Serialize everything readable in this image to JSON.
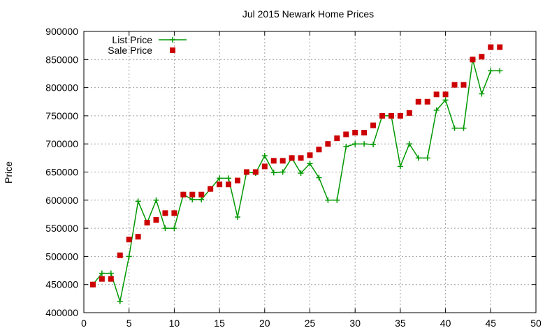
{
  "chart_data": {
    "type": "line",
    "title": "Jul 2015 Newark Home Prices",
    "xlabel": "",
    "ylabel": "Price",
    "xlim": [
      0,
      50
    ],
    "ylim": [
      400000,
      900000
    ],
    "xticks": [
      0,
      5,
      10,
      15,
      20,
      25,
      30,
      35,
      40,
      45,
      50
    ],
    "yticks": [
      400000,
      450000,
      500000,
      550000,
      600000,
      650000,
      700000,
      750000,
      800000,
      850000,
      900000
    ],
    "grid": true,
    "legend_position": "top-left",
    "series": [
      {
        "name": "List Price",
        "style": "line-with-plus-markers",
        "color": "#009900",
        "x": [
          1,
          2,
          3,
          4,
          5,
          6,
          7,
          8,
          9,
          10,
          11,
          12,
          13,
          14,
          15,
          16,
          17,
          18,
          19,
          20,
          21,
          22,
          23,
          24,
          25,
          26,
          27,
          28,
          29,
          30,
          31,
          32,
          33,
          34,
          35,
          36,
          37,
          38,
          39,
          40,
          41,
          42,
          43,
          44,
          45,
          46
        ],
        "y": [
          450000,
          470000,
          470000,
          420000,
          500000,
          598000,
          560000,
          600000,
          550000,
          550000,
          610000,
          601000,
          601000,
          620000,
          639000,
          639000,
          570000,
          650000,
          648000,
          679000,
          649000,
          650000,
          675000,
          648000,
          665000,
          640000,
          600000,
          600000,
          695000,
          700000,
          700000,
          699000,
          750000,
          750000,
          660000,
          700000,
          675000,
          675000,
          760000,
          778000,
          728000,
          728000,
          850000,
          789000,
          830000,
          830000
        ]
      },
      {
        "name": "Sale Price",
        "style": "square-markers",
        "color": "#cc0000",
        "x": [
          1,
          2,
          3,
          4,
          5,
          6,
          7,
          8,
          9,
          10,
          11,
          12,
          13,
          14,
          15,
          16,
          17,
          18,
          19,
          20,
          21,
          22,
          23,
          24,
          25,
          26,
          27,
          28,
          29,
          30,
          31,
          32,
          33,
          34,
          35,
          36,
          37,
          38,
          39,
          40,
          41,
          42,
          43,
          44,
          45,
          46
        ],
        "y": [
          450000,
          460000,
          460000,
          502000,
          530000,
          535000,
          560000,
          565000,
          577000,
          577000,
          610000,
          610000,
          610000,
          620000,
          628000,
          628000,
          635000,
          650000,
          650000,
          660000,
          670000,
          670000,
          675000,
          675000,
          680000,
          690000,
          700000,
          710000,
          717000,
          720000,
          720000,
          733000,
          750000,
          750000,
          750000,
          755000,
          775000,
          775000,
          788000,
          788000,
          805000,
          805000,
          850000,
          855000,
          872000,
          872000
        ]
      }
    ]
  }
}
